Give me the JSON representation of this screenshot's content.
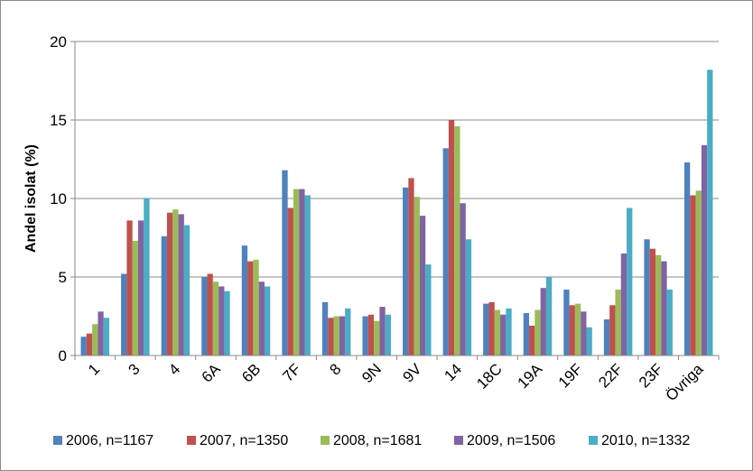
{
  "chart_data": {
    "type": "bar",
    "ylabel": "Andel isolat (%)",
    "xlabel": "",
    "ylim": [
      0,
      20
    ],
    "yticks": [
      "0",
      "5",
      "10",
      "15",
      "20"
    ],
    "grid": true,
    "legend_position": "bottom",
    "categories": [
      "1",
      "3",
      "4",
      "6A",
      "6B",
      "7F",
      "8",
      "9N",
      "9V",
      "14",
      "18C",
      "19A",
      "19F",
      "22F",
      "23F",
      "Övriga"
    ],
    "series": [
      {
        "name": "2006, n=1167",
        "color": "#4f81bd",
        "values": [
          1.2,
          5.2,
          7.6,
          5.0,
          7.0,
          11.8,
          3.4,
          2.5,
          10.7,
          13.2,
          3.3,
          2.7,
          4.2,
          2.3,
          7.4,
          12.3
        ]
      },
      {
        "name": "2007, n=1350",
        "color": "#c0504d",
        "values": [
          1.4,
          8.6,
          9.1,
          5.2,
          6.0,
          9.4,
          2.4,
          2.6,
          11.3,
          15.0,
          3.4,
          1.9,
          3.2,
          3.2,
          6.8,
          10.2
        ]
      },
      {
        "name": "2008, n=1681",
        "color": "#9bbb59",
        "values": [
          2.0,
          7.3,
          9.3,
          4.7,
          6.1,
          10.6,
          2.5,
          2.2,
          10.1,
          14.6,
          2.9,
          2.9,
          3.3,
          4.2,
          6.4,
          10.5
        ]
      },
      {
        "name": "2009, n=1506",
        "color": "#8064a2",
        "values": [
          2.8,
          8.6,
          9.0,
          4.4,
          4.7,
          10.6,
          2.5,
          3.1,
          8.9,
          9.7,
          2.6,
          4.3,
          2.8,
          6.5,
          6.0,
          13.4
        ]
      },
      {
        "name": "2010, n=1332",
        "color": "#4bacc6",
        "values": [
          2.4,
          10.0,
          8.3,
          4.1,
          4.4,
          10.2,
          3.0,
          2.6,
          5.8,
          7.4,
          3.0,
          5.0,
          1.8,
          9.4,
          4.2,
          18.2
        ]
      }
    ]
  }
}
